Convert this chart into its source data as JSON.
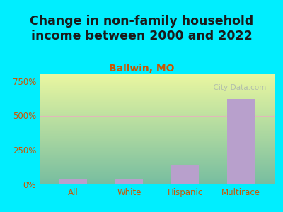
{
  "title": "Change in non-family household\nincome between 2000 and 2022",
  "subtitle": "Ballwin, MO",
  "categories": [
    "All",
    "White",
    "Hispanic",
    "Multirace"
  ],
  "values": [
    40,
    42,
    140,
    620
  ],
  "bar_color": "#b8a0cc",
  "title_fontsize": 12.5,
  "subtitle_fontsize": 10,
  "subtitle_color": "#cc5500",
  "title_color": "#1a1a1a",
  "tick_label_color": "#cc5500",
  "ytick_labels": [
    "0%",
    "250%",
    "500%",
    "750%"
  ],
  "ytick_values": [
    0,
    250,
    500,
    750
  ],
  "ylim": [
    0,
    800
  ],
  "background_outer": "#00eeff",
  "grid_color": "#e0b8b8",
  "watermark": "  City-Data.com",
  "bar_width": 0.5
}
